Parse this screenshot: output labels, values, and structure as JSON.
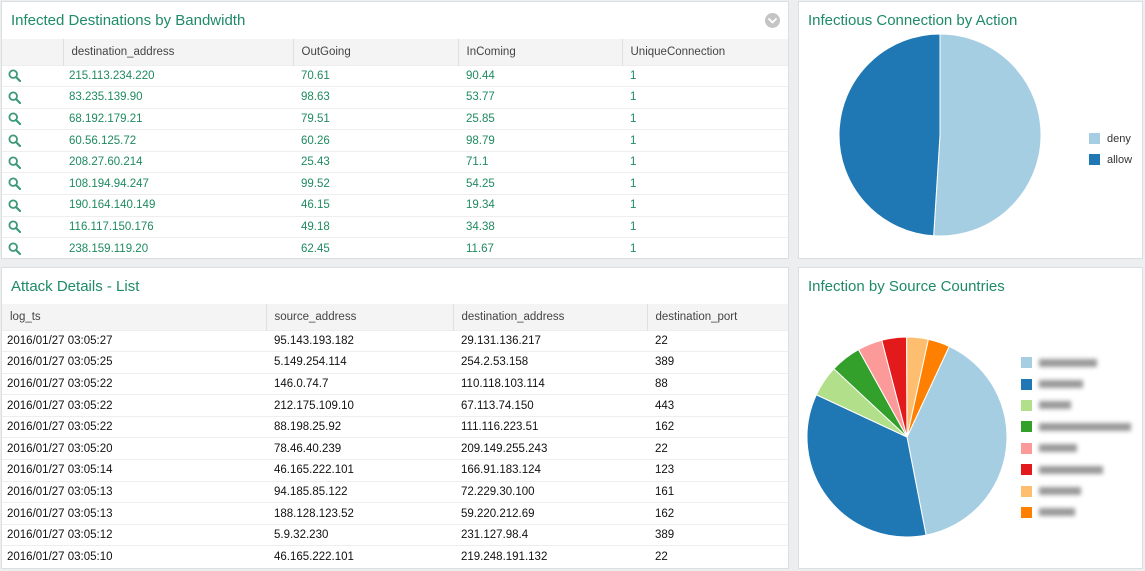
{
  "bandwidth_panel": {
    "title": "Infected Destinations by Bandwidth",
    "columns": [
      "destination_address",
      "OutGoing",
      "InComing",
      "UniqueConnection"
    ],
    "rows": [
      [
        "215.113.234.220",
        "70.61",
        "90.44",
        "1"
      ],
      [
        "83.235.139.90",
        "98.63",
        "53.77",
        "1"
      ],
      [
        "68.192.179.21",
        "79.51",
        "25.85",
        "1"
      ],
      [
        "60.56.125.72",
        "60.26",
        "98.79",
        "1"
      ],
      [
        "208.27.60.214",
        "25.43",
        "71.1",
        "1"
      ],
      [
        "108.194.94.247",
        "99.52",
        "54.25",
        "1"
      ],
      [
        "190.164.140.149",
        "46.15",
        "19.34",
        "1"
      ],
      [
        "116.117.150.176",
        "49.18",
        "34.38",
        "1"
      ],
      [
        "238.159.119.20",
        "62.45",
        "11.67",
        "1"
      ]
    ],
    "row_icon": "search-icon",
    "collapse_icon": "chevron-down-icon"
  },
  "attack_panel": {
    "title": "Attack Details - List",
    "columns": [
      "log_ts",
      "source_address",
      "destination_address",
      "destination_port"
    ],
    "rows": [
      [
        "2016/01/27 03:05:27",
        "95.143.193.182",
        "29.131.136.217",
        "22"
      ],
      [
        "2016/01/27 03:05:25",
        "5.149.254.114",
        "254.2.53.158",
        "389"
      ],
      [
        "2016/01/27 03:05:22",
        "146.0.74.7",
        "110.118.103.114",
        "88"
      ],
      [
        "2016/01/27 03:05:22",
        "212.175.109.10",
        "67.113.74.150",
        "443"
      ],
      [
        "2016/01/27 03:05:22",
        "88.198.25.92",
        "111.116.223.51",
        "162"
      ],
      [
        "2016/01/27 03:05:20",
        "78.46.40.239",
        "209.149.255.243",
        "22"
      ],
      [
        "2016/01/27 03:05:14",
        "46.165.222.101",
        "166.91.183.124",
        "123"
      ],
      [
        "2016/01/27 03:05:13",
        "94.185.85.122",
        "72.229.30.100",
        "161"
      ],
      [
        "2016/01/27 03:05:13",
        "188.128.123.52",
        "59.220.212.69",
        "162"
      ],
      [
        "2016/01/27 03:05:12",
        "5.9.32.230",
        "231.127.98.4",
        "389"
      ],
      [
        "2016/01/27 03:05:10",
        "46.165.222.101",
        "219.248.191.132",
        "22"
      ]
    ]
  },
  "action_panel": {
    "title": "Infectious Connection by Action"
  },
  "countries_panel": {
    "title": "Infection by Source Countries"
  },
  "chart_data": [
    {
      "type": "pie",
      "title": "Infectious Connection by Action",
      "legend": "right",
      "slices": [
        {
          "label": "deny",
          "value": 51,
          "color": "#a6cee3"
        },
        {
          "label": "allow",
          "value": 49,
          "color": "#1f78b4"
        }
      ]
    },
    {
      "type": "pie",
      "title": "Infection by Source Countries",
      "legend": "right",
      "legend_labels_obscured": true,
      "slices": [
        {
          "value": 40,
          "color": "#a6cee3"
        },
        {
          "value": 35,
          "color": "#1f78b4"
        },
        {
          "value": 5,
          "color": "#b2df8a"
        },
        {
          "value": 5,
          "color": "#33a02c"
        },
        {
          "value": 4,
          "color": "#fb9a99"
        },
        {
          "value": 4,
          "color": "#e31a1c"
        },
        {
          "value": 3.5,
          "color": "#fdbf6f"
        },
        {
          "value": 3.5,
          "color": "#ff7f00"
        }
      ]
    }
  ]
}
